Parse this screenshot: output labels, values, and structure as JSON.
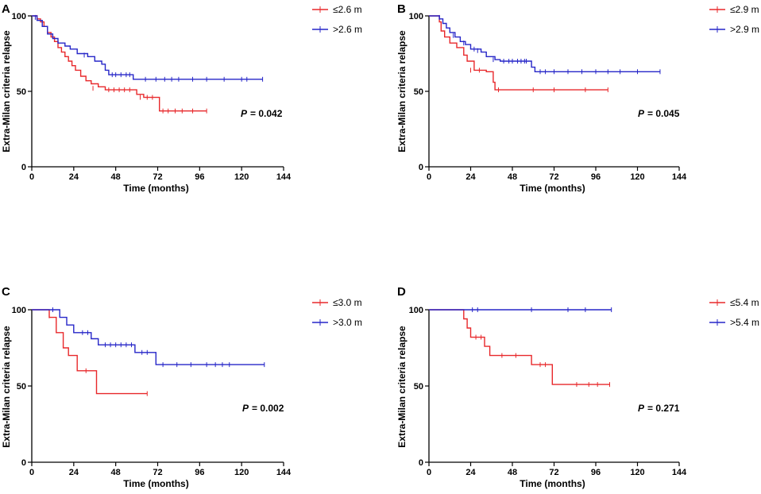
{
  "chart_data": [
    {
      "panel": "A",
      "type": "line",
      "subtype": "kaplan-meier",
      "xlabel": "Time (months)",
      "ylabel": "Extra-Milan criteria relapse",
      "xticks": [
        0,
        24,
        48,
        72,
        96,
        120,
        144
      ],
      "yticks": [
        0,
        50,
        100
      ],
      "xlim": [
        0,
        144
      ],
      "ylim": [
        0,
        100
      ],
      "p_label": "P",
      "p_value": "= 0.042",
      "legend_position": "top-right",
      "series": [
        {
          "name": "≤2.6 m",
          "color": "#e8282b",
          "steps": [
            [
              0,
              100
            ],
            [
              3,
              98
            ],
            [
              5,
              96
            ],
            [
              7,
              93
            ],
            [
              9,
              89
            ],
            [
              11,
              86
            ],
            [
              13,
              83
            ],
            [
              15,
              79
            ],
            [
              17,
              76
            ],
            [
              19,
              73
            ],
            [
              21,
              70
            ],
            [
              23,
              67
            ],
            [
              25,
              64
            ],
            [
              28,
              60
            ],
            [
              31,
              57
            ],
            [
              34,
              55
            ],
            [
              38,
              53
            ],
            [
              42,
              51
            ],
            [
              60,
              48
            ],
            [
              64,
              46
            ],
            [
              73,
              37
            ],
            [
              100,
              37
            ]
          ],
          "censored": [
            [
              3,
              99
            ],
            [
              35,
              52
            ],
            [
              44,
              51
            ],
            [
              47,
              51
            ],
            [
              50,
              51
            ],
            [
              53,
              51
            ],
            [
              56,
              51
            ],
            [
              62,
              46
            ],
            [
              66,
              46
            ],
            [
              69,
              46
            ],
            [
              75,
              37
            ],
            [
              78,
              37
            ],
            [
              82,
              37
            ],
            [
              86,
              37
            ],
            [
              92,
              37
            ],
            [
              100,
              37
            ]
          ]
        },
        {
          "name": ">2.6 m",
          "color": "#2626c8",
          "steps": [
            [
              0,
              100
            ],
            [
              3,
              97
            ],
            [
              6,
              93
            ],
            [
              9,
              88
            ],
            [
              12,
              85
            ],
            [
              15,
              82
            ],
            [
              19,
              80
            ],
            [
              22,
              78
            ],
            [
              26,
              75
            ],
            [
              32,
              73
            ],
            [
              36,
              70
            ],
            [
              40,
              68
            ],
            [
              42,
              64
            ],
            [
              44,
              61
            ],
            [
              58,
              58
            ],
            [
              132,
              58
            ]
          ],
          "censored": [
            [
              2,
              99
            ],
            [
              30,
              74
            ],
            [
              46,
              61
            ],
            [
              48,
              61
            ],
            [
              51,
              61
            ],
            [
              54,
              61
            ],
            [
              56,
              61
            ],
            [
              65,
              58
            ],
            [
              71,
              58
            ],
            [
              76,
              58
            ],
            [
              80,
              58
            ],
            [
              84,
              58
            ],
            [
              92,
              58
            ],
            [
              100,
              58
            ],
            [
              110,
              58
            ],
            [
              120,
              58
            ],
            [
              123,
              58
            ],
            [
              132,
              58
            ]
          ]
        }
      ]
    },
    {
      "panel": "B",
      "type": "line",
      "subtype": "kaplan-meier",
      "xlabel": "Time (months)",
      "ylabel": "Extra-Milan criteria relapse",
      "xticks": [
        0,
        24,
        48,
        72,
        96,
        120,
        144
      ],
      "yticks": [
        0,
        50,
        100
      ],
      "xlim": [
        0,
        144
      ],
      "ylim": [
        0,
        100
      ],
      "p_label": "P",
      "p_value": "= 0.045",
      "legend_position": "top-right",
      "series": [
        {
          "name": "≤2.9 m",
          "color": "#e8282b",
          "steps": [
            [
              0,
              100
            ],
            [
              6,
              96
            ],
            [
              7,
              90
            ],
            [
              9,
              86
            ],
            [
              12,
              82
            ],
            [
              16,
              79
            ],
            [
              20,
              74
            ],
            [
              22,
              70
            ],
            [
              26,
              64
            ],
            [
              33,
              63
            ],
            [
              37,
              56
            ],
            [
              38,
              51
            ],
            [
              103,
              51
            ]
          ],
          "censored": [
            [
              24,
              64
            ],
            [
              29,
              64
            ],
            [
              40,
              51
            ],
            [
              60,
              51
            ],
            [
              72,
              51
            ],
            [
              90,
              51
            ],
            [
              103,
              51
            ]
          ]
        },
        {
          "name": ">2.9 m",
          "color": "#2626c8",
          "steps": [
            [
              0,
              100
            ],
            [
              6,
              98
            ],
            [
              8,
              95
            ],
            [
              10,
              92
            ],
            [
              12,
              89
            ],
            [
              15,
              86
            ],
            [
              18,
              83
            ],
            [
              21,
              81
            ],
            [
              24,
              78
            ],
            [
              30,
              76
            ],
            [
              33,
              73
            ],
            [
              38,
              71
            ],
            [
              41,
              70
            ],
            [
              59,
              66
            ],
            [
              61,
              63
            ],
            [
              133,
              63
            ]
          ],
          "censored": [
            [
              6,
              99
            ],
            [
              14,
              87
            ],
            [
              20,
              82
            ],
            [
              26,
              78
            ],
            [
              28,
              77
            ],
            [
              37,
              71
            ],
            [
              43,
              70
            ],
            [
              46,
              70
            ],
            [
              48,
              70
            ],
            [
              51,
              70
            ],
            [
              53,
              70
            ],
            [
              55,
              70
            ],
            [
              56,
              70
            ],
            [
              64,
              63
            ],
            [
              67,
              63
            ],
            [
              72,
              63
            ],
            [
              80,
              63
            ],
            [
              88,
              63
            ],
            [
              96,
              63
            ],
            [
              103,
              63
            ],
            [
              110,
              63
            ],
            [
              120,
              63
            ],
            [
              133,
              63
            ]
          ]
        }
      ]
    },
    {
      "panel": "C",
      "type": "line",
      "subtype": "kaplan-meier",
      "xlabel": "Time (months)",
      "ylabel": "Extra-Milan criteria relapse",
      "xticks": [
        0,
        24,
        48,
        72,
        96,
        120,
        144
      ],
      "yticks": [
        0,
        50,
        100
      ],
      "xlim": [
        0,
        144
      ],
      "ylim": [
        0,
        100
      ],
      "p_label": "P",
      "p_value": "= 0.002",
      "legend_position": "top-right",
      "series": [
        {
          "name": "≤3.0 m",
          "color": "#e8282b",
          "steps": [
            [
              0,
              100
            ],
            [
              10,
              95
            ],
            [
              14,
              85
            ],
            [
              18,
              75
            ],
            [
              21,
              70
            ],
            [
              26,
              60
            ],
            [
              37,
              45
            ],
            [
              66,
              45
            ]
          ],
          "censored": [
            [
              10,
              96
            ],
            [
              31,
              60
            ],
            [
              66,
              45
            ]
          ]
        },
        {
          "name": ">3.0 m",
          "color": "#2626c8",
          "steps": [
            [
              0,
              100
            ],
            [
              16,
              95
            ],
            [
              20,
              90
            ],
            [
              24,
              85
            ],
            [
              34,
              81
            ],
            [
              38,
              77
            ],
            [
              59,
              72
            ],
            [
              71,
              64
            ],
            [
              133,
              64
            ]
          ],
          "censored": [
            [
              12,
              100
            ],
            [
              29,
              85
            ],
            [
              32,
              85
            ],
            [
              42,
              77
            ],
            [
              45,
              77
            ],
            [
              48,
              77
            ],
            [
              51,
              77
            ],
            [
              54,
              77
            ],
            [
              57,
              77
            ],
            [
              63,
              72
            ],
            [
              66,
              72
            ],
            [
              75,
              64
            ],
            [
              83,
              64
            ],
            [
              91,
              64
            ],
            [
              100,
              64
            ],
            [
              105,
              64
            ],
            [
              109,
              64
            ],
            [
              113,
              64
            ],
            [
              133,
              64
            ]
          ]
        }
      ]
    },
    {
      "panel": "D",
      "type": "line",
      "subtype": "kaplan-meier",
      "xlabel": "Time (months)",
      "ylabel": "Extra-Milan criteria relapse",
      "xticks": [
        0,
        24,
        48,
        72,
        96,
        120,
        144
      ],
      "yticks": [
        0,
        50,
        100
      ],
      "xlim": [
        0,
        144
      ],
      "ylim": [
        0,
        100
      ],
      "p_label": "P",
      "p_value": "= 0.271",
      "legend_position": "top-right",
      "series": [
        {
          "name": "≤5.4 m",
          "color": "#e8282b",
          "steps": [
            [
              0,
              100
            ],
            [
              20,
              94
            ],
            [
              22,
              88
            ],
            [
              24,
              82
            ],
            [
              32,
              76
            ],
            [
              35,
              70
            ],
            [
              59,
              64
            ],
            [
              71,
              51
            ],
            [
              104,
              51
            ]
          ],
          "censored": [
            [
              27,
              82
            ],
            [
              30,
              82
            ],
            [
              42,
              70
            ],
            [
              50,
              70
            ],
            [
              64,
              64
            ],
            [
              67,
              64
            ],
            [
              85,
              51
            ],
            [
              92,
              51
            ],
            [
              97,
              51
            ],
            [
              104,
              51
            ]
          ]
        },
        {
          "name": ">5.4 m",
          "color": "#2626c8",
          "steps": [
            [
              0,
              100
            ],
            [
              105,
              100
            ]
          ],
          "censored": [
            [
              25,
              100
            ],
            [
              28,
              100
            ],
            [
              59,
              100
            ],
            [
              80,
              100
            ],
            [
              90,
              100
            ],
            [
              105,
              100
            ]
          ]
        }
      ]
    }
  ]
}
